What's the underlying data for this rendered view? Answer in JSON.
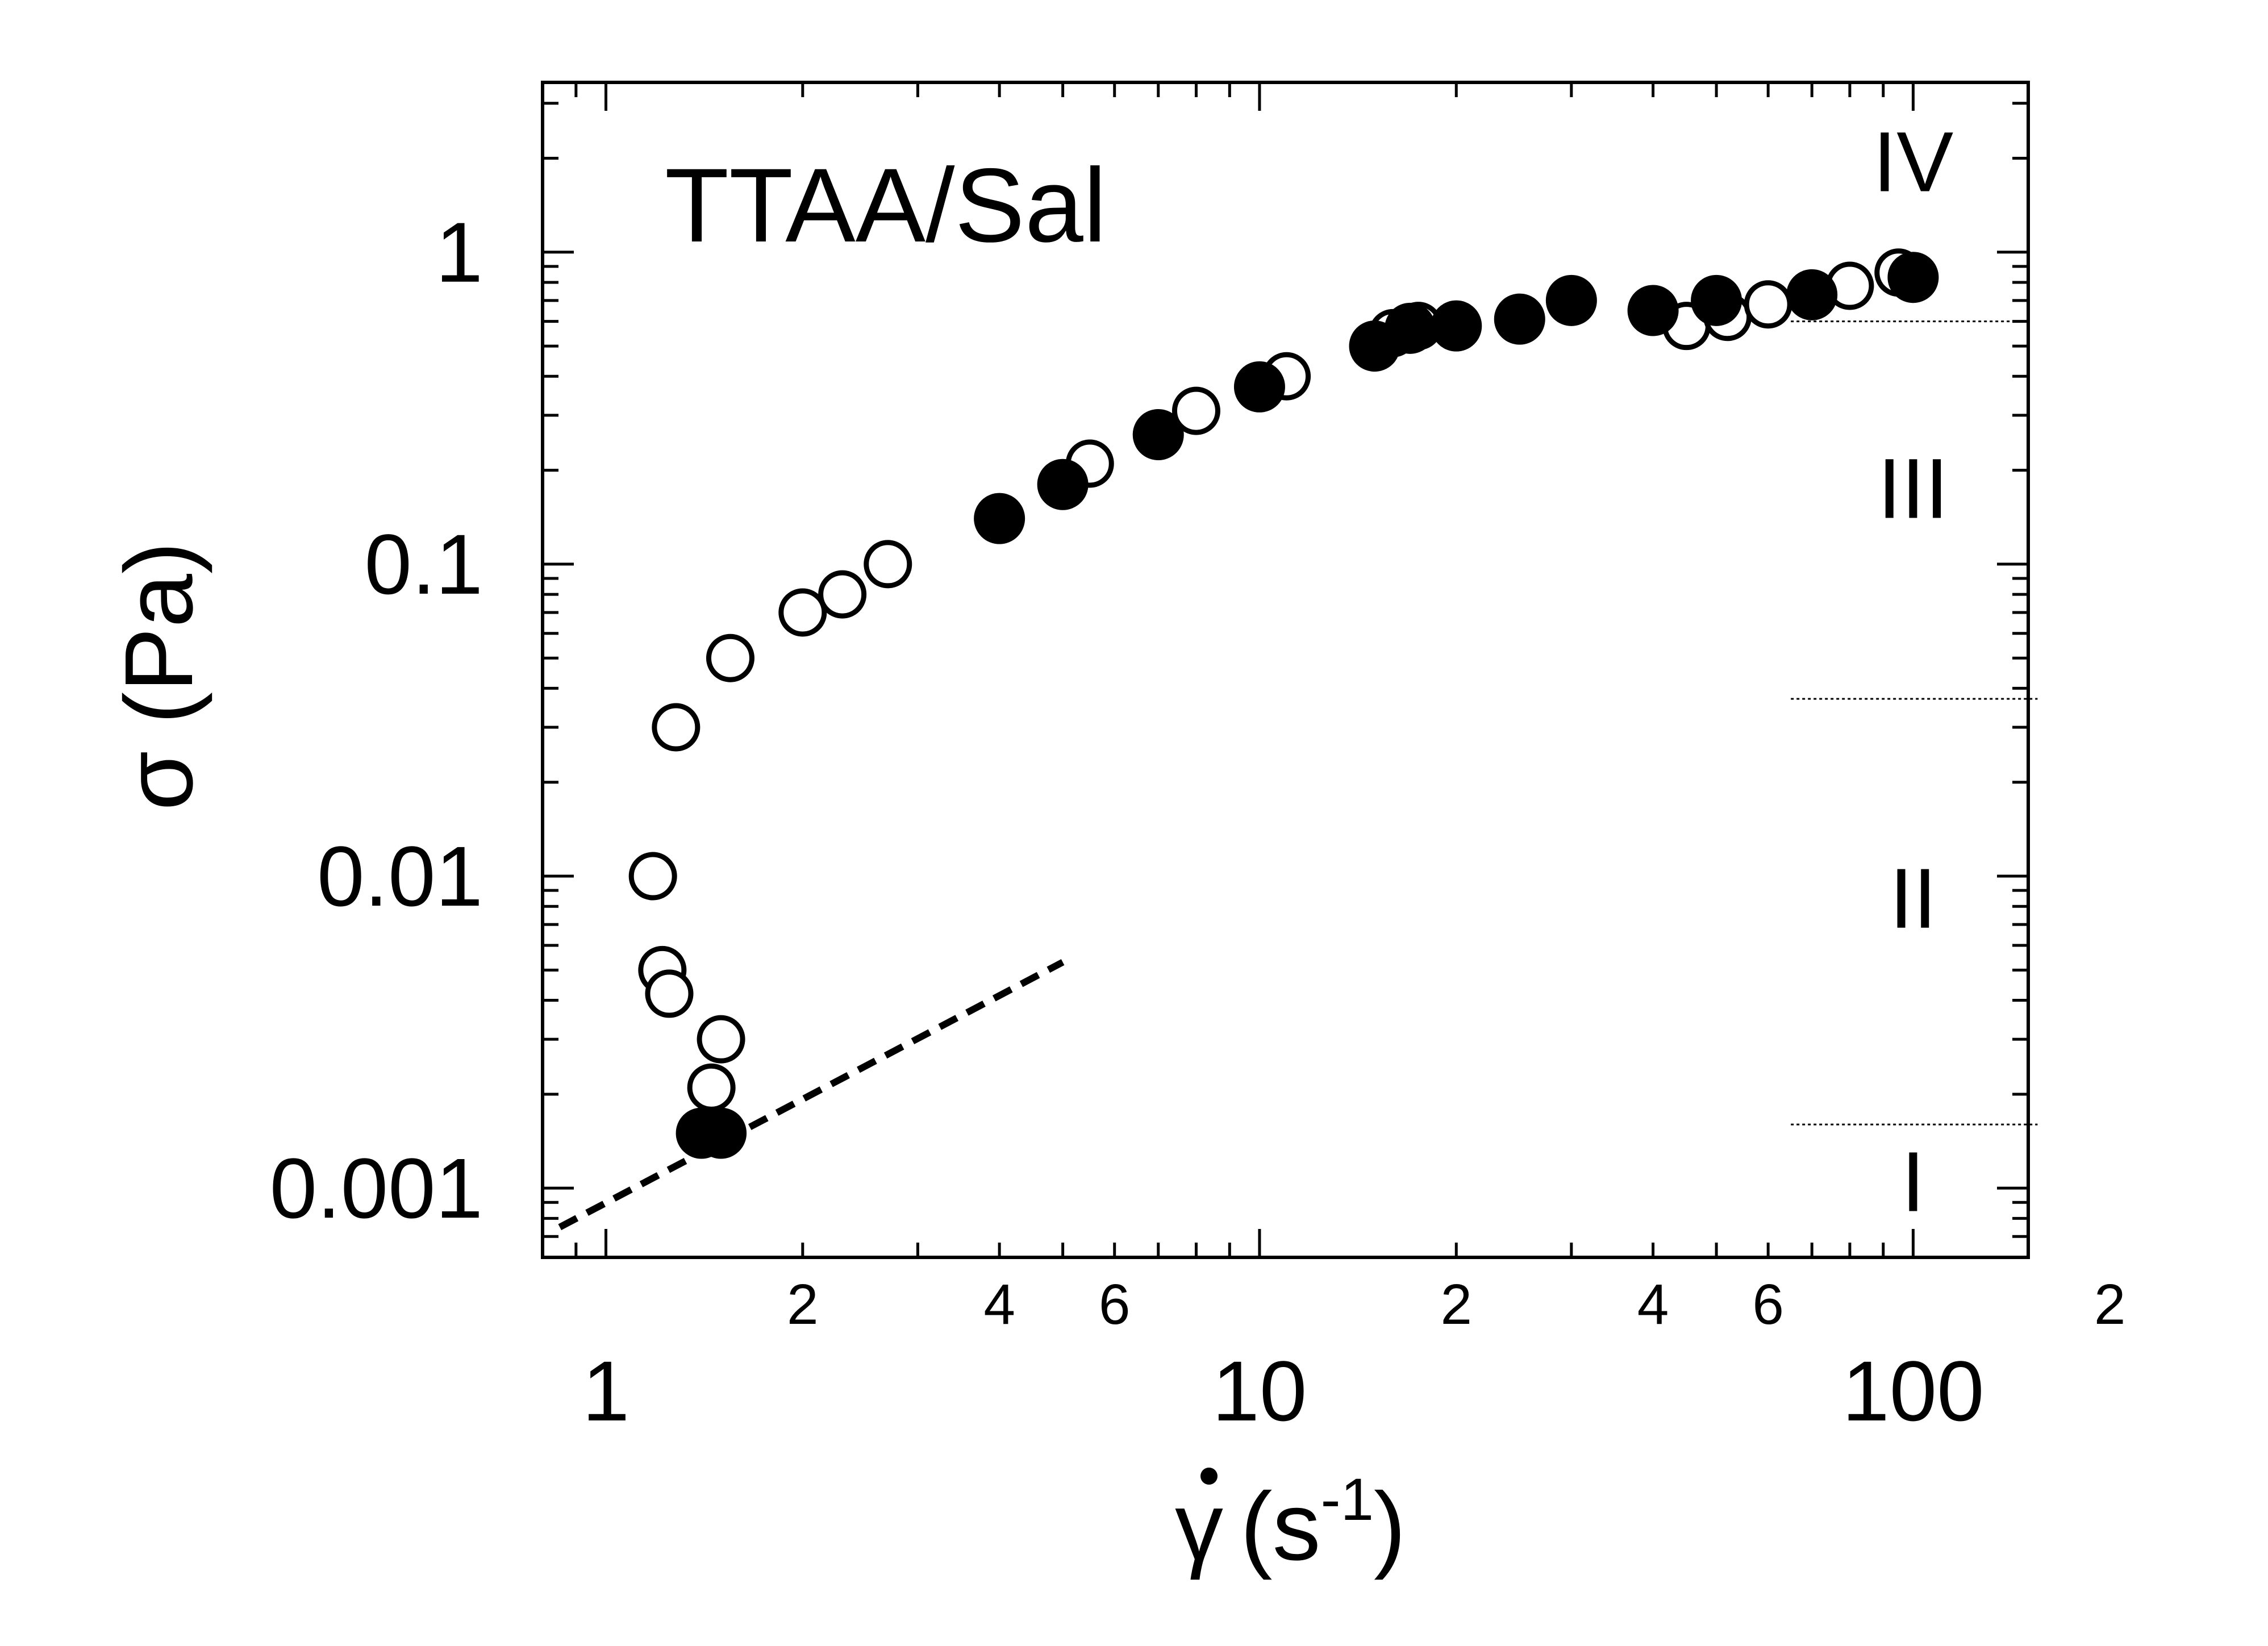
{
  "chart_data": {
    "type": "scatter",
    "title": "TTAA/Sal",
    "xlabel": "γ̇ (s⁻¹)",
    "xlabel_parts": {
      "symbol": "γ",
      "unit_open": "(s",
      "exponent": "-1",
      "unit_close": ")"
    },
    "ylabel": "σ (Pa)",
    "xscale": "log",
    "yscale": "log",
    "xlim": [
      0.8,
      150
    ],
    "ylim": [
      0.0006,
      3.5
    ],
    "x_major_ticks": [
      {
        "value": 1,
        "label": "1"
      },
      {
        "value": 10,
        "label": "10"
      },
      {
        "value": 100,
        "label": "100"
      }
    ],
    "x_minor_tick_labels": [
      {
        "value": 2,
        "label": "2"
      },
      {
        "value": 4,
        "label": "4"
      },
      {
        "value": 6,
        "label": "6"
      },
      {
        "value": 20,
        "label": "2"
      },
      {
        "value": 40,
        "label": "4"
      },
      {
        "value": 60,
        "label": "6"
      },
      {
        "value": 200,
        "label": "2"
      }
    ],
    "y_major_ticks": [
      {
        "value": 0.001,
        "label": "0.001"
      },
      {
        "value": 0.01,
        "label": "0.01"
      },
      {
        "value": 0.1,
        "label": "0.1"
      },
      {
        "value": 1,
        "label": "1"
      }
    ],
    "series": [
      {
        "name": "open circles",
        "marker": "open-circle",
        "color": "#000000",
        "points": [
          [
            1.18,
            0.01
          ],
          [
            1.22,
            0.005
          ],
          [
            1.25,
            0.0042
          ],
          [
            1.28,
            0.03
          ],
          [
            1.45,
            0.0021
          ],
          [
            1.5,
            0.003
          ],
          [
            1.55,
            0.05
          ],
          [
            2.0,
            0.07
          ],
          [
            2.3,
            0.08
          ],
          [
            2.7,
            0.1
          ],
          [
            5.5,
            0.21
          ],
          [
            8.0,
            0.31
          ],
          [
            11.0,
            0.4
          ],
          [
            16.0,
            0.55
          ],
          [
            17.5,
            0.58
          ],
          [
            45.0,
            0.58
          ],
          [
            52.0,
            0.62
          ],
          [
            60.0,
            0.68
          ],
          [
            80.0,
            0.78
          ],
          [
            95.0,
            0.86
          ]
        ]
      },
      {
        "name": "filled circles",
        "marker": "filled-circle",
        "color": "#000000",
        "points": [
          [
            1.4,
            0.0015
          ],
          [
            1.5,
            0.0015
          ],
          [
            4.0,
            0.14
          ],
          [
            5.0,
            0.18
          ],
          [
            7.0,
            0.26
          ],
          [
            10.0,
            0.37
          ],
          [
            15.0,
            0.5
          ],
          [
            17.0,
            0.57
          ],
          [
            20.0,
            0.58
          ],
          [
            25.0,
            0.61
          ],
          [
            30.0,
            0.7
          ],
          [
            40.0,
            0.65
          ],
          [
            50.0,
            0.7
          ],
          [
            70.0,
            0.73
          ],
          [
            100.0,
            0.83
          ]
        ]
      }
    ],
    "fit_line": {
      "style": "dashed",
      "points": [
        [
          0.85,
          0.00075
        ],
        [
          5.0,
          0.0053
        ]
      ]
    },
    "region_boundaries": [
      {
        "y": 0.6,
        "x_range": [
          65,
          150
        ]
      },
      {
        "y": 0.037,
        "x_range": [
          65,
          155
        ]
      },
      {
        "y": 0.0016,
        "x_range": [
          65,
          155
        ]
      }
    ],
    "region_labels": [
      {
        "text": "IV",
        "x": 100,
        "y": 1.95
      },
      {
        "text": "III",
        "x": 100,
        "y": 0.175
      },
      {
        "text": "II",
        "x": 100,
        "y": 0.0085
      },
      {
        "text": "I",
        "x": 100,
        "y": 0.00105
      }
    ]
  }
}
